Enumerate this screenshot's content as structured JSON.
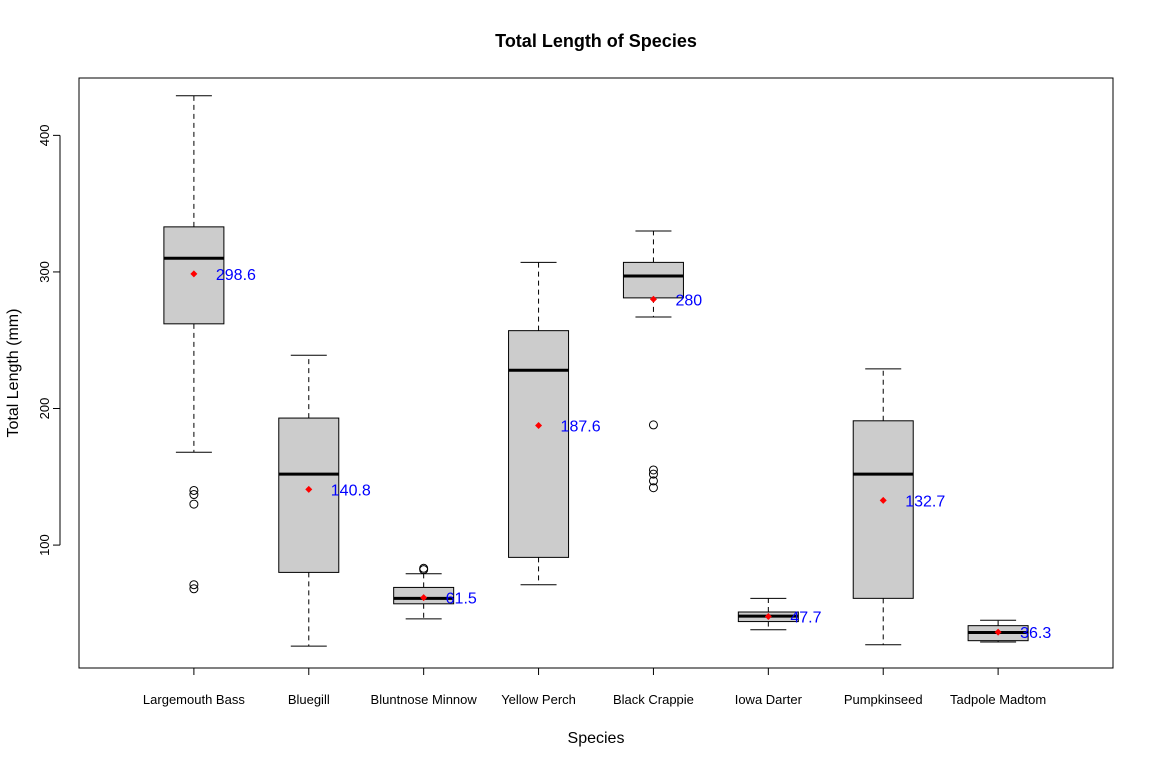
{
  "chart_data": {
    "type": "boxplot",
    "title": "Total Length of Species",
    "xlabel": "Species",
    "ylabel": "Total Length (mm)",
    "ylim": [
      10,
      442
    ],
    "yticks": [
      "100",
      "200",
      "300",
      "400"
    ],
    "colors": {
      "box_fill": "#cccccc",
      "mean_marker": "#ff0000",
      "mean_label": "#0000ff",
      "line": "#000000"
    },
    "categories": [
      "Largemouth Bass",
      "Bluegill",
      "Bluntnose Minnow",
      "Yellow Perch",
      "Black Crappie",
      "Iowa Darter",
      "Pumpkinseed",
      "Tadpole Madtom"
    ],
    "boxes": [
      {
        "whisker_low": 168,
        "q1": 262,
        "median": 310,
        "q3": 333,
        "whisker_high": 429,
        "mean": 298.6,
        "mean_label": "298.6",
        "outliers": [
          140,
          137,
          130,
          71,
          68
        ]
      },
      {
        "whisker_low": 26,
        "q1": 80,
        "median": 152,
        "q3": 193,
        "whisker_high": 239,
        "mean": 140.8,
        "mean_label": "140.8",
        "outliers": []
      },
      {
        "whisker_low": 46,
        "q1": 57,
        "median": 61,
        "q3": 69,
        "whisker_high": 79,
        "mean": 61.5,
        "mean_label": "61.5",
        "outliers": [
          83,
          82
        ]
      },
      {
        "whisker_low": 71,
        "q1": 91,
        "median": 228,
        "q3": 257,
        "whisker_high": 307,
        "mean": 187.6,
        "mean_label": "187.6",
        "outliers": []
      },
      {
        "whisker_low": 267,
        "q1": 281,
        "median": 297,
        "q3": 307,
        "whisker_high": 330,
        "mean": 280,
        "mean_label": "280",
        "outliers": [
          188,
          155,
          152,
          147,
          142
        ]
      },
      {
        "whisker_low": 38,
        "q1": 44,
        "median": 48,
        "q3": 51,
        "whisker_high": 61,
        "mean": 47.7,
        "mean_label": "47.7",
        "outliers": []
      },
      {
        "whisker_low": 27,
        "q1": 61,
        "median": 152,
        "q3": 191,
        "whisker_high": 229,
        "mean": 132.7,
        "mean_label": "132.7",
        "outliers": []
      },
      {
        "whisker_low": 29,
        "q1": 30,
        "median": 36,
        "q3": 41,
        "whisker_high": 45,
        "mean": 36.3,
        "mean_label": "36.3",
        "outliers": []
      }
    ]
  }
}
